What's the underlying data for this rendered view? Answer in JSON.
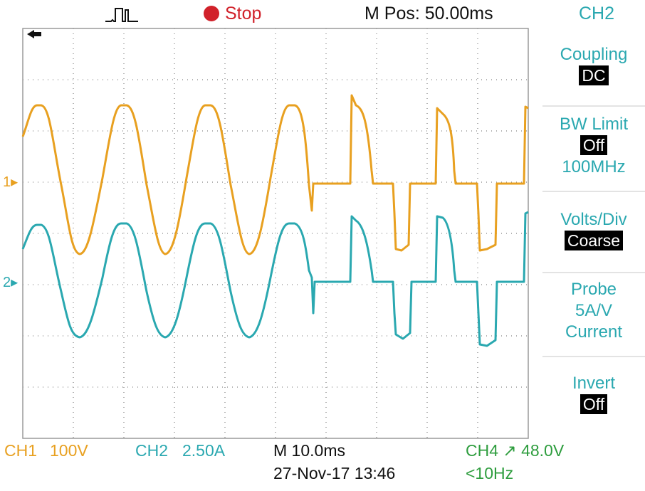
{
  "header": {
    "trigger_icon": "trigger-pulse-icon",
    "stop_label": "Stop",
    "mpos_label": "M Pos: 50.00ms",
    "channel_title": "CH2"
  },
  "menu": {
    "coupling": {
      "label": "Coupling",
      "value": "DC"
    },
    "bw_limit": {
      "label": "BW Limit",
      "value": "Off",
      "sub": "100MHz"
    },
    "volts_div": {
      "label": "Volts/Div",
      "value": "Coarse"
    },
    "probe": {
      "label": "Probe",
      "line2": "5A/V",
      "line3": "Current"
    },
    "invert": {
      "label": "Invert",
      "value": "Off"
    }
  },
  "markers": {
    "ch1": "1",
    "ch2": "2"
  },
  "footer": {
    "ch1_name": "CH1",
    "ch1_scale": "100V",
    "ch2_name": "CH2",
    "ch2_scale": "2.50A",
    "timebase": "M 10.0ms",
    "ch4_trigger": "CH4 ↗ 48.0V",
    "datetime": "27-Nov-17 13:46",
    "freq": "<10Hz"
  },
  "colors": {
    "ch1": "#e8a020",
    "ch2": "#2aa8b0",
    "ch4": "#2e9d3e",
    "stop": "#d1212a",
    "grid": "#9a9a9a"
  }
}
